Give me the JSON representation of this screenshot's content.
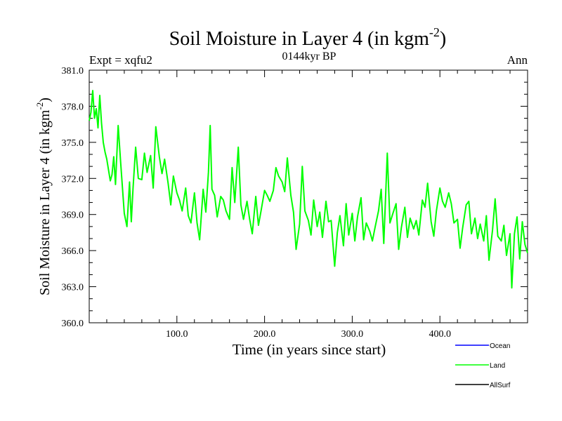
{
  "chart_data": {
    "type": "line",
    "title": "Soil Moisture in Layer 4 (in kgm",
    "title_sup": "-2",
    "title_end": ")",
    "subtitle": "0144kyr BP",
    "left_label": "Expt = xqfu2",
    "right_label": "Ann",
    "xlabel": "Time (in years since start)",
    "ylabel": "Soil Moisture in Layer 4 (in kgm",
    "ylabel_sup": "-2",
    "ylabel_end": ")",
    "xlim": [
      0,
      500
    ],
    "ylim": [
      360.0,
      381.0
    ],
    "xticks": [
      100,
      200,
      300,
      400
    ],
    "xtick_labels": [
      "100.0",
      "200.0",
      "300.0",
      "400.0"
    ],
    "yticks": [
      360,
      363,
      366,
      369,
      372,
      375,
      378,
      381
    ],
    "ytick_labels": [
      "360.0",
      "363.0",
      "366.0",
      "369.0",
      "372.0",
      "375.0",
      "378.0",
      "381.0"
    ],
    "legend_position": "bottom-right",
    "series": [
      {
        "name": "Ocean",
        "color": "#0000ff",
        "x": [],
        "y": []
      },
      {
        "name": "Land",
        "color": "#00ff00",
        "x": [
          0,
          2,
          4,
          6,
          8,
          10,
          12,
          14,
          16,
          18,
          20,
          22,
          24,
          26,
          28,
          30,
          33,
          36,
          40,
          43,
          46,
          48,
          50,
          53,
          56,
          60,
          63,
          66,
          70,
          73,
          76,
          80,
          83,
          86,
          90,
          93,
          96,
          100,
          103,
          106,
          110,
          113,
          116,
          120,
          123,
          126,
          130,
          133,
          136,
          138,
          140,
          143,
          146,
          150,
          153,
          156,
          160,
          163,
          166,
          170,
          173,
          176,
          180,
          183,
          186,
          190,
          193,
          196,
          200,
          203,
          206,
          210,
          213,
          216,
          220,
          223,
          226,
          230,
          233,
          236,
          240,
          243,
          246,
          250,
          253,
          256,
          260,
          263,
          266,
          270,
          273,
          276,
          280,
          283,
          286,
          290,
          293,
          296,
          300,
          303,
          306,
          310,
          313,
          316,
          320,
          323,
          326,
          330,
          333,
          336,
          340,
          343,
          346,
          350,
          353,
          356,
          360,
          363,
          366,
          370,
          373,
          376,
          380,
          383,
          386,
          390,
          393,
          396,
          400,
          403,
          406,
          410,
          413,
          416,
          420,
          423,
          426,
          430,
          433,
          436,
          440,
          443,
          446,
          450,
          453,
          456,
          460,
          463,
          466,
          470,
          473,
          476,
          480,
          482,
          485,
          488,
          491,
          494,
          497,
          500
        ],
        "y": [
          376.8,
          377.5,
          379.3,
          377.0,
          377.8,
          376.2,
          378.9,
          376.6,
          375.0,
          374.2,
          373.6,
          372.7,
          371.8,
          372.3,
          373.8,
          371.5,
          376.4,
          373.2,
          369.1,
          368.0,
          371.7,
          368.4,
          371.2,
          374.6,
          372.0,
          371.9,
          374.1,
          372.5,
          373.9,
          371.2,
          376.3,
          373.8,
          372.4,
          373.6,
          371.6,
          369.8,
          372.2,
          370.8,
          370.2,
          369.3,
          371.2,
          368.9,
          368.3,
          370.8,
          368.3,
          366.9,
          371.1,
          369.2,
          372.5,
          376.4,
          371.1,
          370.6,
          368.8,
          370.5,
          370.2,
          369.3,
          368.6,
          372.9,
          370.0,
          374.6,
          369.8,
          368.6,
          370.1,
          368.6,
          367.4,
          370.5,
          368.1,
          369.3,
          371.0,
          370.6,
          370.1,
          371.0,
          372.9,
          372.2,
          371.7,
          370.9,
          373.7,
          370.6,
          369.2,
          366.1,
          368.2,
          373.0,
          369.3,
          368.5,
          367.3,
          370.2,
          368.0,
          369.2,
          367.1,
          370.1,
          368.4,
          368.5,
          364.7,
          367.5,
          368.9,
          366.4,
          369.9,
          367.3,
          369.1,
          366.8,
          368.8,
          370.4,
          366.9,
          368.3,
          367.6,
          366.8,
          367.9,
          369.3,
          371.1,
          366.6,
          374.1,
          368.3,
          369.0,
          369.9,
          366.1,
          367.9,
          369.6,
          367.1,
          368.7,
          367.8,
          368.5,
          367.3,
          370.2,
          369.6,
          371.6,
          368.4,
          367.2,
          369.3,
          371.2,
          370.1,
          369.6,
          370.8,
          369.9,
          368.3,
          368.6,
          366.2,
          367.9,
          369.8,
          370.1,
          367.4,
          368.7,
          367.0,
          368.2,
          366.8,
          368.9,
          365.2,
          367.7,
          370.3,
          367.2,
          366.8,
          368.1,
          365.6,
          367.4,
          362.9,
          367.4,
          368.8,
          365.3,
          368.4,
          366.5,
          365.8
        ]
      },
      {
        "name": "AllSurf",
        "color": "#000000",
        "x": [],
        "y": []
      }
    ]
  }
}
